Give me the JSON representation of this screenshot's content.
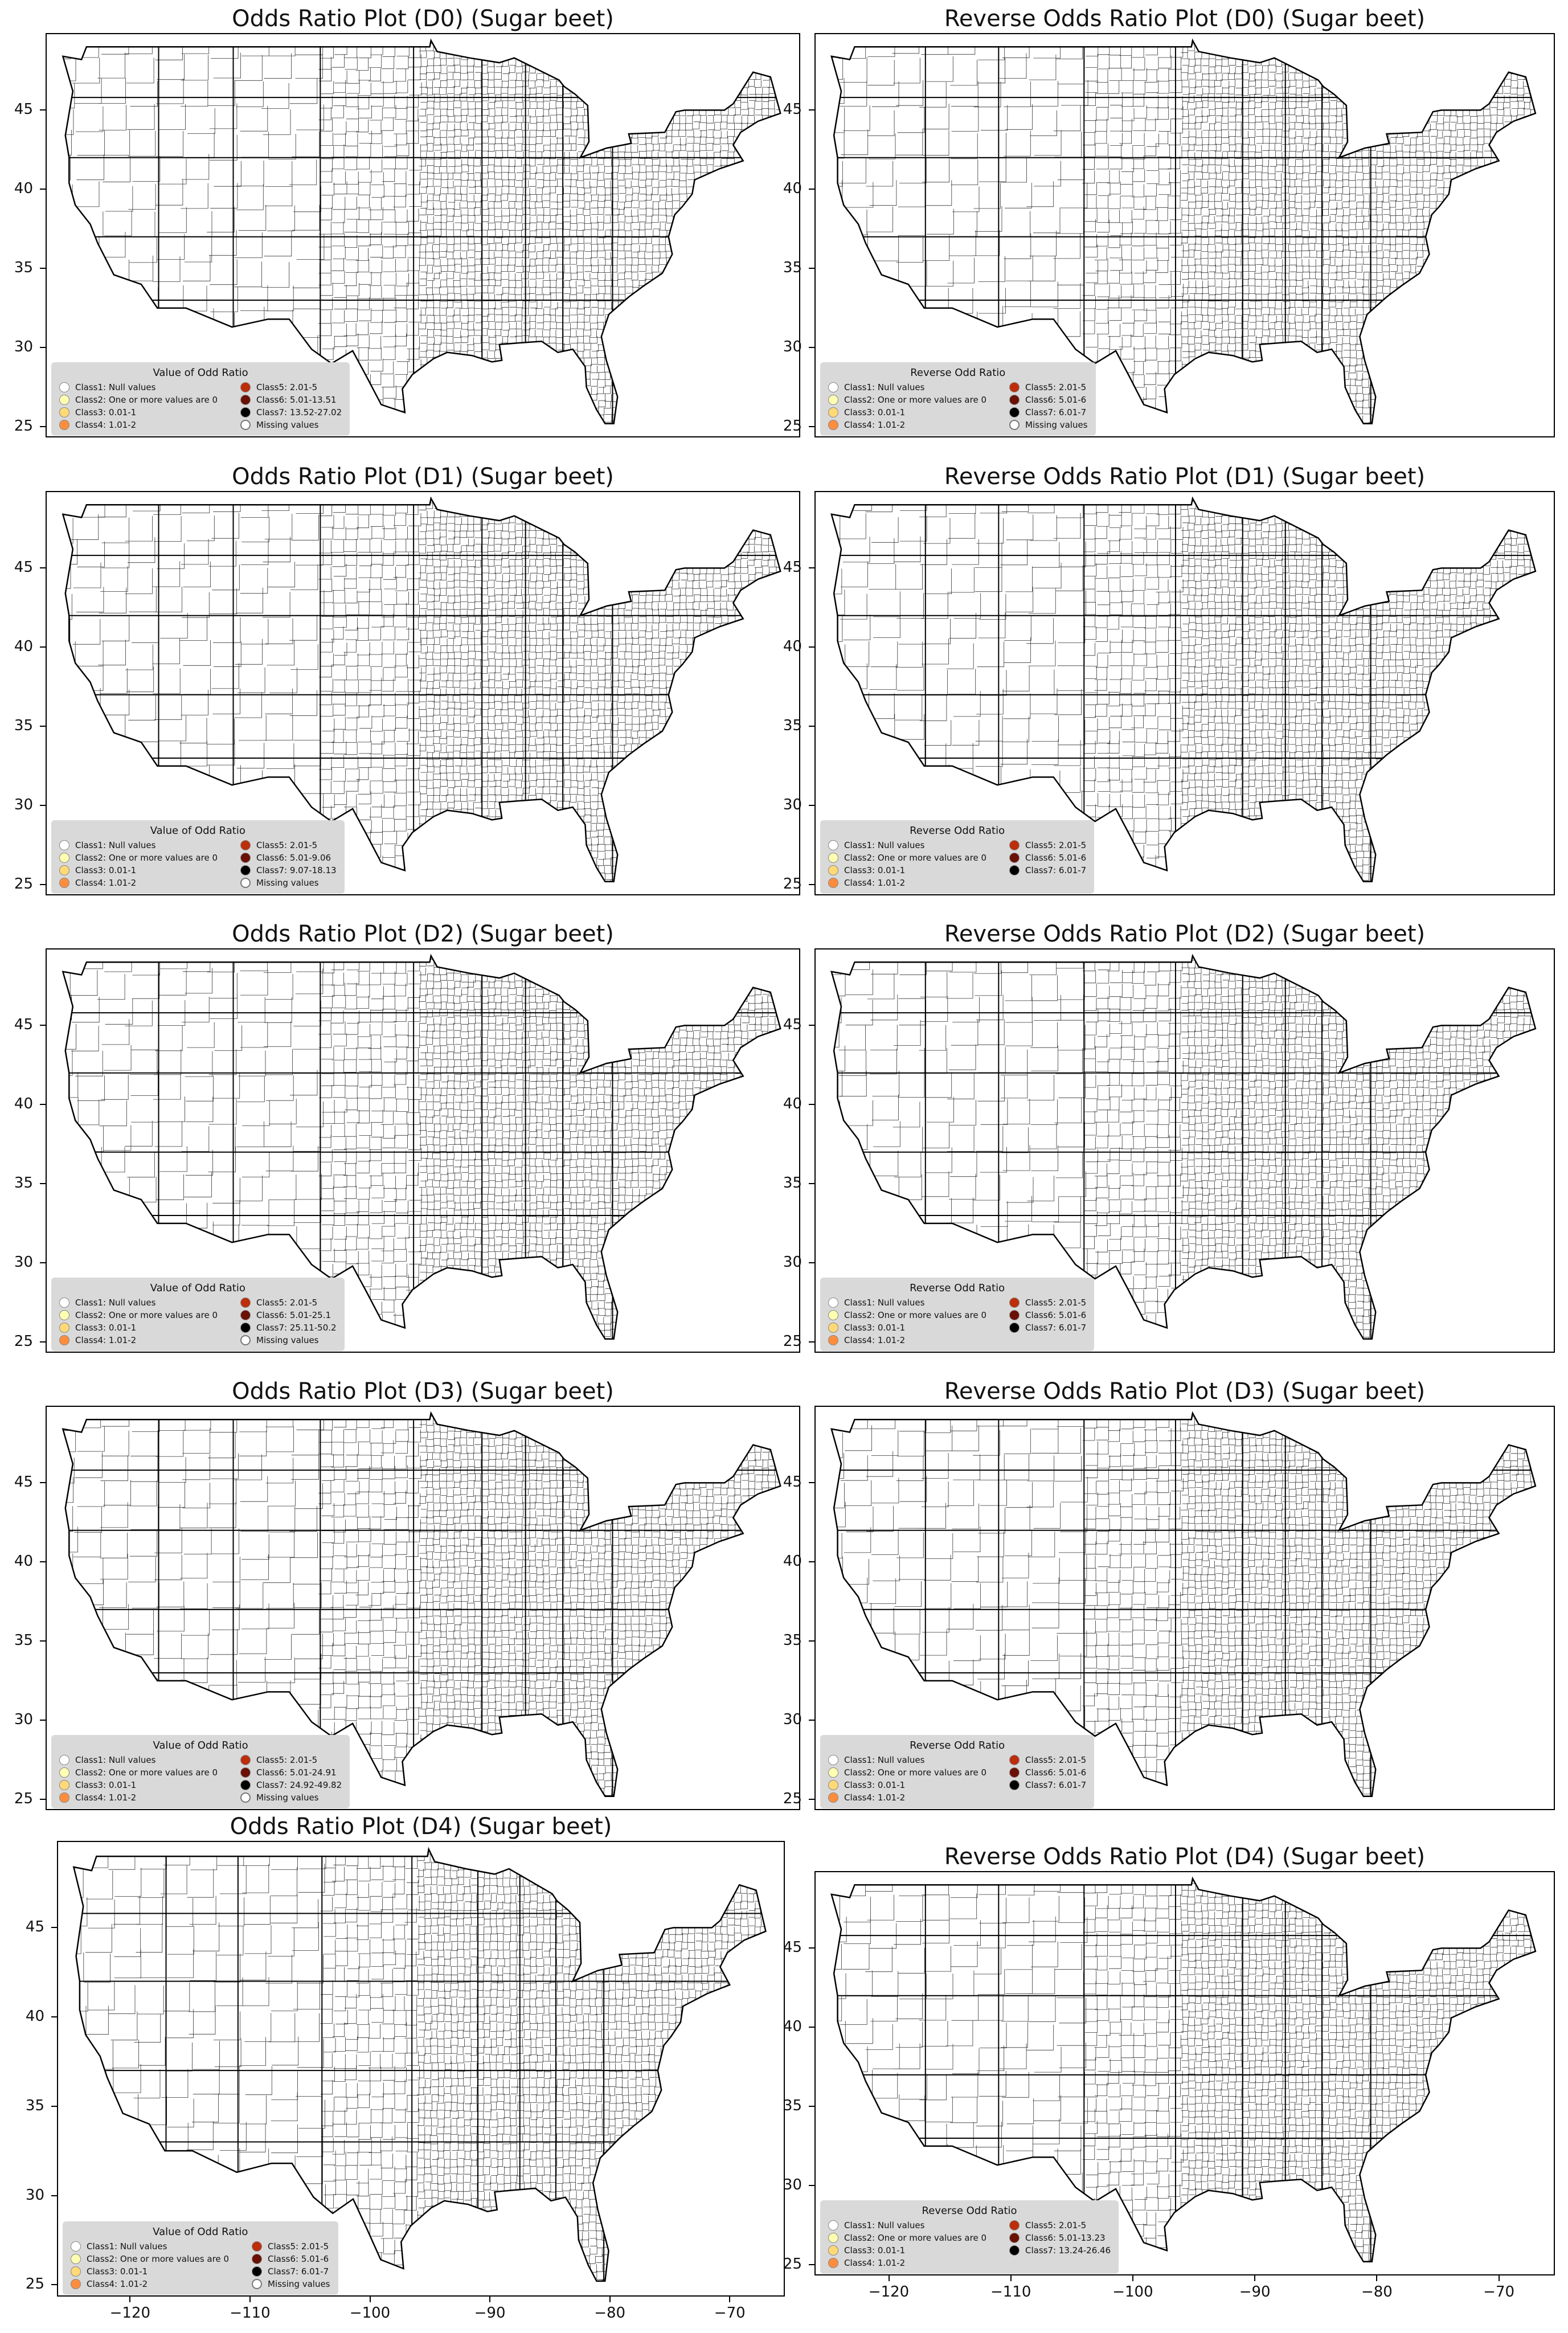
{
  "classes_colors": {
    "null": "#ffffff",
    "zero": "#ffffb2",
    "c3": "#fed976",
    "c4": "#fd8d3c",
    "c5": "#bd2e0a",
    "c6": "#6b1004",
    "c7": "#000000",
    "missing": "#bdbdbd"
  },
  "x_ticks": [
    "−120",
    "−110",
    "−100",
    "−90",
    "−80",
    "−70"
  ],
  "y_ticks": [
    "45",
    "40",
    "35",
    "30",
    "25"
  ],
  "panels": [
    {
      "title": "Odds Ratio Plot (D0) (Sugar beet)",
      "legend": {
        "title": "Value of Odd Ratio",
        "items": [
          "Class1: Null values",
          "Class2: One or more values are 0",
          "Class3: 0.01-1",
          "Class4: 1.01-2",
          "Class5: 2.01-5",
          "Class6: 5.01-13.51",
          "Class7: 13.52-27.02",
          "Missing values"
        ]
      }
    },
    {
      "title": "Reverse Odds Ratio Plot (D0) (Sugar beet)",
      "legend": {
        "title": "Reverse Odd Ratio",
        "items": [
          "Class1: Null values",
          "Class2: One or more values are 0",
          "Class3: 0.01-1",
          "Class4: 1.01-2",
          "Class5: 2.01-5",
          "Class6: 5.01-6",
          "Class7: 6.01-7",
          "Missing values"
        ]
      }
    },
    {
      "title": "Odds Ratio Plot (D1) (Sugar beet)",
      "legend": {
        "title": "Value of Odd Ratio",
        "items": [
          "Class1: Null values",
          "Class2: One or more values are 0",
          "Class3: 0.01-1",
          "Class4: 1.01-2",
          "Class5: 2.01-5",
          "Class6: 5.01-9.06",
          "Class7: 9.07-18.13",
          "Missing values"
        ]
      }
    },
    {
      "title": "Reverse Odds Ratio Plot (D1) (Sugar beet)",
      "legend": {
        "title": "Reverse Odd Ratio",
        "items": [
          "Class1: Null values",
          "Class2: One or more values are 0",
          "Class3: 0.01-1",
          "Class4: 1.01-2",
          "Class5: 2.01-5",
          "Class6: 5.01-6",
          "Class7: 6.01-7"
        ]
      }
    },
    {
      "title": "Odds Ratio Plot (D2) (Sugar beet)",
      "legend": {
        "title": "Value of Odd Ratio",
        "items": [
          "Class1: Null values",
          "Class2: One or more values are 0",
          "Class3: 0.01-1",
          "Class4: 1.01-2",
          "Class5: 2.01-5",
          "Class6: 5.01-25.1",
          "Class7: 25.11-50.2",
          "Missing values"
        ]
      }
    },
    {
      "title": "Reverse Odds Ratio Plot (D2) (Sugar beet)",
      "legend": {
        "title": "Reverse Odd Ratio",
        "items": [
          "Class1: Null values",
          "Class2: One or more values are 0",
          "Class3: 0.01-1",
          "Class4: 1.01-2",
          "Class5: 2.01-5",
          "Class6: 5.01-6",
          "Class7: 6.01-7"
        ]
      }
    },
    {
      "title": "Odds Ratio Plot (D3) (Sugar beet)",
      "legend": {
        "title": "Value of Odd Ratio",
        "items": [
          "Class1: Null values",
          "Class2: One or more values are 0",
          "Class3: 0.01-1",
          "Class4: 1.01-2",
          "Class5: 2.01-5",
          "Class6: 5.01-24.91",
          "Class7: 24.92-49.82",
          "Missing values"
        ]
      }
    },
    {
      "title": "Reverse Odds Ratio Plot (D3) (Sugar beet)",
      "legend": {
        "title": "Reverse Odd Ratio",
        "items": [
          "Class1: Null values",
          "Class2: One or more values are 0",
          "Class3: 0.01-1",
          "Class4: 1.01-2",
          "Class5: 2.01-5",
          "Class6: 5.01-6",
          "Class7: 6.01-7"
        ]
      }
    },
    {
      "title": "Odds Ratio Plot (D4) (Sugar beet)",
      "legend": {
        "title": "Value of Odd Ratio",
        "items": [
          "Class1: Null values",
          "Class2: One or more values are 0",
          "Class3: 0.01-1",
          "Class4: 1.01-2",
          "Class5: 2.01-5",
          "Class6: 5.01-6",
          "Class7: 6.01-7",
          "Missing values"
        ]
      }
    },
    {
      "title": "Reverse Odds Ratio Plot (D4) (Sugar beet)",
      "legend": {
        "title": "Reverse Odd Ratio",
        "items": [
          "Class1: Null values",
          "Class2: One or more values are 0",
          "Class3: 0.01-1",
          "Class4: 1.01-2",
          "Class5: 2.01-5",
          "Class6: 5.01-13.23",
          "Class7: 13.24-26.46"
        ]
      }
    }
  ]
}
